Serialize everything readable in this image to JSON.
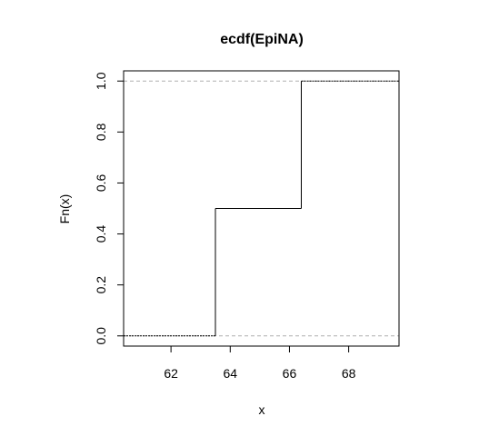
{
  "chart_data": {
    "type": "line",
    "title": "ecdf(EpiNA)",
    "xlabel": "x",
    "ylabel": "Fn(x)",
    "xlim": [
      60.4,
      69.7
    ],
    "ylim": [
      -0.04,
      1.04
    ],
    "x_ticks": [
      62,
      64,
      66,
      68
    ],
    "y_ticks": [
      0.0,
      0.2,
      0.4,
      0.6,
      0.8,
      1.0
    ],
    "y_tick_labels": [
      "0.0",
      "0.2",
      "0.4",
      "0.6",
      "0.8",
      "1.0"
    ],
    "reference_lines": [
      0,
      1
    ],
    "step_function": {
      "jumps_x": [
        63.5,
        66.4
      ],
      "levels_y": [
        0,
        0.5,
        1.0
      ]
    },
    "grid": false,
    "legend": "none"
  }
}
